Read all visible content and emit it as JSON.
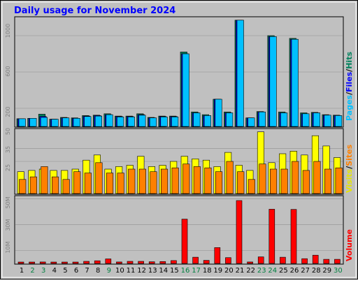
{
  "chart_data": [
    {
      "type": "bar",
      "title": "Daily usage for November 2024",
      "panel": "top",
      "categories": [
        "1",
        "2",
        "3",
        "4",
        "5",
        "6",
        "7",
        "8",
        "9",
        "10",
        "11",
        "12",
        "13",
        "14",
        "15",
        "16",
        "17",
        "18",
        "19",
        "20",
        "21",
        "22",
        "23",
        "24",
        "25",
        "26",
        "27",
        "28",
        "29",
        "30"
      ],
      "series": [
        {
          "name": "Hits",
          "color": "#00805c",
          "values": [
            85,
            90,
            135,
            80,
            100,
            95,
            120,
            125,
            140,
            115,
            115,
            140,
            100,
            115,
            115,
            820,
            160,
            130,
            300,
            160,
            1170,
            95,
            165,
            1000,
            160,
            970,
            150,
            155,
            130,
            125
          ]
        },
        {
          "name": "Files",
          "color": "#0000ff",
          "values": [
            85,
            90,
            110,
            80,
            95,
            90,
            115,
            120,
            130,
            110,
            110,
            130,
            95,
            110,
            110,
            800,
            150,
            120,
            300,
            150,
            1170,
            95,
            160,
            990,
            150,
            960,
            140,
            150,
            125,
            120
          ]
        },
        {
          "name": "Pages",
          "color": "#00c0ff",
          "values": [
            85,
            90,
            100,
            80,
            95,
            90,
            110,
            115,
            130,
            105,
            105,
            125,
            95,
            105,
            105,
            800,
            150,
            120,
            300,
            150,
            1170,
            95,
            160,
            990,
            150,
            960,
            140,
            150,
            125,
            120
          ]
        }
      ],
      "y_ticks": [
        "200",
        "600",
        "1000"
      ],
      "ylim": [
        0,
        1200
      ],
      "legend": [
        "Pages",
        "Files",
        "Hits"
      ],
      "legend_placement": "right"
    },
    {
      "type": "bar",
      "panel": "middle",
      "categories": [
        "1",
        "2",
        "3",
        "4",
        "5",
        "6",
        "7",
        "8",
        "9",
        "10",
        "11",
        "12",
        "13",
        "14",
        "15",
        "16",
        "17",
        "18",
        "19",
        "20",
        "21",
        "22",
        "23",
        "24",
        "25",
        "26",
        "27",
        "28",
        "29",
        "30"
      ],
      "series": [
        {
          "name": "Visits",
          "color": "#ffff00",
          "values": [
            17,
            18,
            19,
            18,
            18,
            19,
            26,
            30,
            19,
            21,
            22,
            29,
            21,
            22,
            25,
            29,
            27,
            26,
            21,
            32,
            22,
            18,
            48,
            24,
            31,
            33,
            30,
            45,
            37,
            28
          ]
        },
        {
          "name": "Sites",
          "color": "#ff8000",
          "values": [
            11,
            13,
            21,
            13,
            11,
            17,
            16,
            24,
            16,
            16,
            19,
            19,
            17,
            19,
            20,
            23,
            21,
            20,
            17,
            25,
            17,
            11,
            23,
            19,
            19,
            25,
            18,
            25,
            19,
            20
          ]
        }
      ],
      "y_ticks": [
        "25",
        "35",
        "50"
      ],
      "ylim": [
        0,
        50
      ],
      "legend": [
        "Visits",
        "Sites"
      ],
      "legend_placement": "right"
    },
    {
      "type": "bar",
      "panel": "bottom",
      "categories": [
        "1",
        "2",
        "3",
        "4",
        "5",
        "6",
        "7",
        "8",
        "9",
        "10",
        "11",
        "12",
        "13",
        "14",
        "15",
        "16",
        "17",
        "18",
        "19",
        "20",
        "21",
        "22",
        "23",
        "24",
        "25",
        "26",
        "27",
        "28",
        "29",
        "30"
      ],
      "series": [
        {
          "name": "Volume",
          "color": "#ff0000",
          "values": [
            0.6,
            0.6,
            0.7,
            0.6,
            0.6,
            0.6,
            1.0,
            1.3,
            2.2,
            0.7,
            1.0,
            1.0,
            0.8,
            0.9,
            1.4,
            21.5,
            3.0,
            1.5,
            7.7,
            2.8,
            30.5,
            0.7,
            3.2,
            26.3,
            3.0,
            26.2,
            2.3,
            4.0,
            2.0,
            2.0
          ]
        }
      ],
      "y_ticks": [
        "10M",
        "30M",
        "50M"
      ],
      "ylim": [
        0,
        30.5
      ],
      "legend": [
        "Volume"
      ],
      "legend_placement": "right"
    }
  ],
  "weekend_days": [
    "2",
    "3",
    "9",
    "16",
    "17",
    "23",
    "24",
    "30"
  ],
  "colors": {
    "border": "#000000",
    "panel_bg": "#c0c0c0",
    "outer_bg": "#ffffff",
    "title": "#0000ff",
    "weekday_label": "#000000",
    "weekend_label": "#008040",
    "gridline": "#909090"
  }
}
